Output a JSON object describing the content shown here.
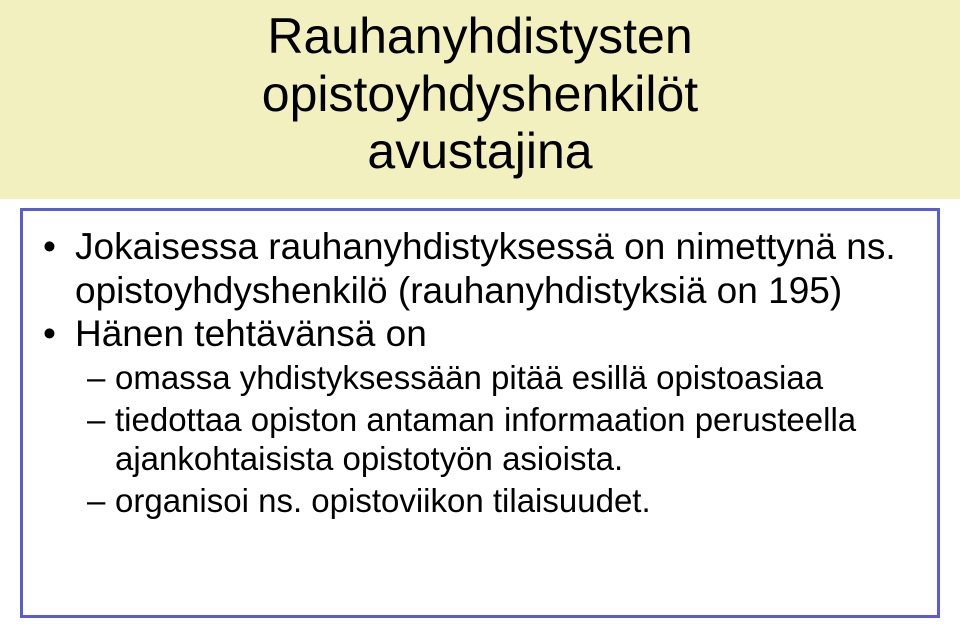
{
  "colors": {
    "title_band_bg": "#f3f0c0",
    "content_border": "#5b5bd6",
    "text": "#000000",
    "page_bg": "#ffffff"
  },
  "title": {
    "line1": "Rauhanyhdistysten",
    "line2": "opistoyhdyshenkilöt",
    "line3": "avustajina"
  },
  "bullets": [
    {
      "level": 1,
      "text": "Jokaisessa rauhanyhdistyksessä on nimettynä ns. opistoyhdyshenkilö (rauhanyhdistyksiä on 195)"
    },
    {
      "level": 1,
      "text": "Hänen tehtävänsä on"
    },
    {
      "level": 2,
      "text": "omassa yhdistyksessään pitää esillä opistoasiaa"
    },
    {
      "level": 2,
      "text": "tiedottaa opiston antaman informaation perusteella ajankohtaisista opistotyön asioista."
    },
    {
      "level": 2,
      "text": "organisoi ns. opistoviikon tilaisuudet."
    }
  ]
}
